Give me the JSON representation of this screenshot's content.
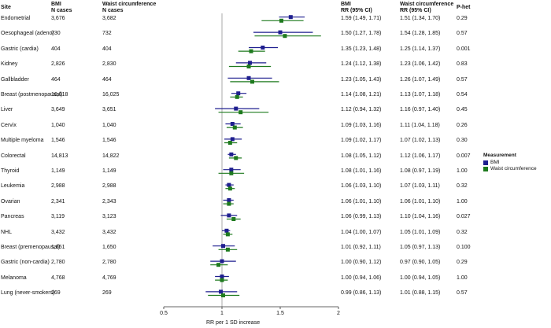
{
  "headers": {
    "site": "Site",
    "bmi_cases_l1": "BMI",
    "bmi_cases_l2": "N cases",
    "waist_cases_l1": "Waist circumference",
    "waist_cases_l2": "N cases",
    "bmi_rr_l1": "BMI",
    "bmi_rr_l2": "RR (95% CI)",
    "waist_rr_l1": "Waist circumference",
    "waist_rr_l2": "RR (95% CI)",
    "phet": "P-het"
  },
  "legend": {
    "title": "Measurement",
    "bmi": "BMI",
    "waist": "Waist circumference"
  },
  "colors": {
    "bmi": "#1f1f8f",
    "waist": "#1e7a1e",
    "refline": "#aaaaaa"
  },
  "chart_data": {
    "type": "forest",
    "xlabel": "RR per 1 SD increase",
    "xlim": [
      0.5,
      2
    ],
    "xticks": [
      0.5,
      1,
      1.5,
      2
    ],
    "xtick_labels": [
      "0.5",
      "1",
      "1.5",
      "2"
    ],
    "reference_line": 1,
    "series": [
      {
        "name": "BMI",
        "key": "bmi"
      },
      {
        "name": "Waist circumference",
        "key": "waist"
      }
    ],
    "rows": [
      {
        "site": "Endometrial",
        "n_bmi": "3,676",
        "n_waist": "3,682",
        "bmi": [
          1.59,
          1.49,
          1.71
        ],
        "waist": [
          1.51,
          1.34,
          1.7
        ],
        "bmi_text": "1.59 (1.49, 1.71)",
        "waist_text": "1.51 (1.34, 1.70)",
        "phet": "0.29"
      },
      {
        "site": "Oesophageal (adeno)",
        "n_bmi": "730",
        "n_waist": "732",
        "bmi": [
          1.5,
          1.27,
          1.78
        ],
        "waist": [
          1.54,
          1.28,
          1.85
        ],
        "bmi_text": "1.50 (1.27, 1.78)",
        "waist_text": "1.54 (1.28, 1.85)",
        "phet": "0.57"
      },
      {
        "site": "Gastric (cardia)",
        "n_bmi": "404",
        "n_waist": "404",
        "bmi": [
          1.35,
          1.23,
          1.48
        ],
        "waist": [
          1.25,
          1.14,
          1.37
        ],
        "bmi_text": "1.35 (1.23, 1.48)",
        "waist_text": "1.25 (1.14, 1.37)",
        "phet": "0.001"
      },
      {
        "site": "Kidney",
        "n_bmi": "2,826",
        "n_waist": "2,830",
        "bmi": [
          1.24,
          1.12,
          1.38
        ],
        "waist": [
          1.23,
          1.06,
          1.42
        ],
        "bmi_text": "1.24 (1.12, 1.38)",
        "waist_text": "1.23 (1.06, 1.42)",
        "phet": "0.83"
      },
      {
        "site": "Gallbladder",
        "n_bmi": "464",
        "n_waist": "464",
        "bmi": [
          1.23,
          1.05,
          1.43
        ],
        "waist": [
          1.26,
          1.07,
          1.49
        ],
        "bmi_text": "1.23 (1.05, 1.43)",
        "waist_text": "1.26 (1.07, 1.49)",
        "phet": "0.57"
      },
      {
        "site": "Breast (postmenopausal)",
        "n_bmi": "16,018",
        "n_waist": "16,025",
        "bmi": [
          1.14,
          1.08,
          1.21
        ],
        "waist": [
          1.13,
          1.07,
          1.18
        ],
        "bmi_text": "1.14 (1.08, 1.21)",
        "waist_text": "1.13 (1.07, 1.18)",
        "phet": "0.54"
      },
      {
        "site": "Liver",
        "n_bmi": "3,649",
        "n_waist": "3,651",
        "bmi": [
          1.12,
          0.94,
          1.32
        ],
        "waist": [
          1.16,
          0.97,
          1.4
        ],
        "bmi_text": "1.12 (0.94, 1.32)",
        "waist_text": "1.16 (0.97, 1.40)",
        "phet": "0.45"
      },
      {
        "site": "Cervix",
        "n_bmi": "1,040",
        "n_waist": "1,040",
        "bmi": [
          1.09,
          1.03,
          1.16
        ],
        "waist": [
          1.11,
          1.04,
          1.18
        ],
        "bmi_text": "1.09 (1.03, 1.16)",
        "waist_text": "1.11 (1.04, 1.18)",
        "phet": "0.26"
      },
      {
        "site": "Multiple myeloma",
        "n_bmi": "1,546",
        "n_waist": "1,546",
        "bmi": [
          1.09,
          1.02,
          1.17
        ],
        "waist": [
          1.07,
          1.02,
          1.13
        ],
        "bmi_text": "1.09 (1.02, 1.17)",
        "waist_text": "1.07 (1.02, 1.13)",
        "phet": "0.30"
      },
      {
        "site": "Colorectal",
        "n_bmi": "14,813",
        "n_waist": "14,822",
        "bmi": [
          1.08,
          1.05,
          1.12
        ],
        "waist": [
          1.12,
          1.06,
          1.17
        ],
        "bmi_text": "1.08 (1.05, 1.12)",
        "waist_text": "1.12 (1.06, 1.17)",
        "phet": "0.007"
      },
      {
        "site": "Thyroid",
        "n_bmi": "1,149",
        "n_waist": "1,149",
        "bmi": [
          1.08,
          1.01,
          1.16
        ],
        "waist": [
          1.08,
          0.97,
          1.19
        ],
        "bmi_text": "1.08 (1.01, 1.16)",
        "waist_text": "1.08 (0.97, 1.19)",
        "phet": "1.00"
      },
      {
        "site": "Leukemia",
        "n_bmi": "2,988",
        "n_waist": "2,988",
        "bmi": [
          1.06,
          1.03,
          1.1
        ],
        "waist": [
          1.07,
          1.03,
          1.11
        ],
        "bmi_text": "1.06 (1.03, 1.10)",
        "waist_text": "1.07 (1.03, 1.11)",
        "phet": "0.32"
      },
      {
        "site": "Ovarian",
        "n_bmi": "2,341",
        "n_waist": "2,343",
        "bmi": [
          1.06,
          1.01,
          1.1
        ],
        "waist": [
          1.06,
          1.01,
          1.1
        ],
        "bmi_text": "1.06 (1.01, 1.10)",
        "waist_text": "1.06 (1.01, 1.10)",
        "phet": "1.00"
      },
      {
        "site": "Pancreas",
        "n_bmi": "3,119",
        "n_waist": "3,123",
        "bmi": [
          1.06,
          0.99,
          1.13
        ],
        "waist": [
          1.1,
          1.04,
          1.16
        ],
        "bmi_text": "1.06 (0.99, 1.13)",
        "waist_text": "1.10 (1.04, 1.16)",
        "phet": "0.027"
      },
      {
        "site": "NHL",
        "n_bmi": "3,432",
        "n_waist": "3,432",
        "bmi": [
          1.04,
          1.0,
          1.07
        ],
        "waist": [
          1.05,
          1.01,
          1.09
        ],
        "bmi_text": "1.04 (1.00, 1.07)",
        "waist_text": "1.05 (1.01, 1.09)",
        "phet": "0.32"
      },
      {
        "site": "Breast (premenopausal)",
        "n_bmi": "1,651",
        "n_waist": "1,650",
        "bmi": [
          1.01,
          0.92,
          1.11
        ],
        "waist": [
          1.05,
          0.97,
          1.13
        ],
        "bmi_text": "1.01 (0.92, 1.11)",
        "waist_text": "1.05 (0.97, 1.13)",
        "phet": "0.100"
      },
      {
        "site": "Gastric (non-cardia)",
        "n_bmi": "2,780",
        "n_waist": "2,780",
        "bmi": [
          1.0,
          0.9,
          1.12
        ],
        "waist": [
          0.97,
          0.9,
          1.05
        ],
        "bmi_text": "1.00 (0.90, 1.12)",
        "waist_text": "0.97 (0.90, 1.05)",
        "phet": "0.29"
      },
      {
        "site": "Melanoma",
        "n_bmi": "4,768",
        "n_waist": "4,769",
        "bmi": [
          1.0,
          0.94,
          1.06
        ],
        "waist": [
          1.0,
          0.94,
          1.05
        ],
        "bmi_text": "1.00 (0.94, 1.06)",
        "waist_text": "1.00 (0.94, 1.05)",
        "phet": "1.00"
      },
      {
        "site": "Lung (never-smokers)",
        "n_bmi": "269",
        "n_waist": "269",
        "bmi": [
          0.99,
          0.86,
          1.13
        ],
        "waist": [
          1.01,
          0.88,
          1.15
        ],
        "bmi_text": "0.99 (0.86, 1.13)",
        "waist_text": "1.01 (0.88, 1.15)",
        "phet": "0.57"
      }
    ]
  }
}
